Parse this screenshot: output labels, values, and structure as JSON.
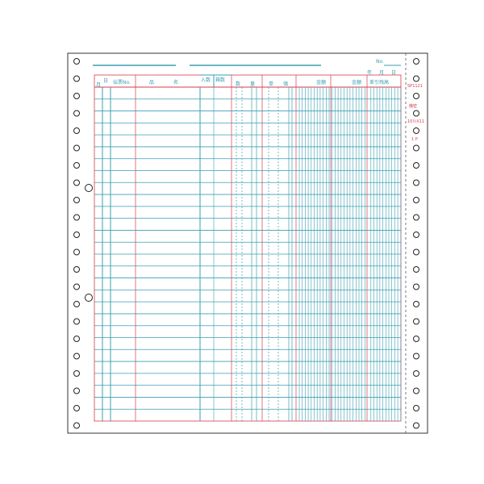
{
  "form": {
    "header": {
      "number_label": "No.",
      "date_labels": [
        "年",
        "月",
        "日"
      ]
    },
    "columns": [
      {
        "label": "月"
      },
      {
        "label": "日"
      },
      {
        "label": "伝票No."
      },
      {
        "label": "品　　　　名"
      },
      {
        "label": "入数"
      },
      {
        "label": "箱数"
      },
      {
        "label": "数　　量"
      },
      {
        "label": "単　　価"
      },
      {
        "label": "金額"
      },
      {
        "label": "金額"
      },
      {
        "label": "差引残高"
      }
    ],
    "side_labels": {
      "code": "SP1121",
      "stamp": "機密",
      "size": "10½X11",
      "parts": "1 P"
    },
    "colors": {
      "line": "#3a9fb0",
      "header": "#d83a4a",
      "frame": "#333333"
    }
  }
}
